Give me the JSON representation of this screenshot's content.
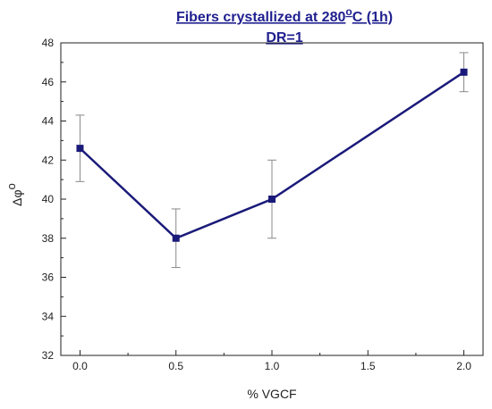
{
  "chart_data": {
    "type": "line",
    "title": {
      "line1_prefix": "Fibers crystallized at 280",
      "line1_superscript": "o",
      "line1_suffix": "C (1h)",
      "line2": "DR=1"
    },
    "xlabel": "% VGCF",
    "ylabel": {
      "base": "Δφ",
      "superscript": "o"
    },
    "xlim": [
      -0.1,
      2.1
    ],
    "ylim": [
      32,
      48
    ],
    "xticks": [
      0.0,
      0.5,
      1.0,
      1.5,
      2.0
    ],
    "xtick_labels": [
      "0.0",
      "0.5",
      "1.0",
      "1.5",
      "2.0"
    ],
    "yticks": [
      32,
      34,
      36,
      38,
      40,
      42,
      44,
      46,
      48
    ],
    "ytick_labels": [
      "32",
      "34",
      "36",
      "38",
      "40",
      "42",
      "44",
      "46",
      "48"
    ],
    "grid": false,
    "series": [
      {
        "x": [
          0.0,
          0.5,
          1.0,
          2.0
        ],
        "y": [
          42.6,
          38.0,
          40.0,
          46.5
        ],
        "error_low": [
          40.9,
          36.5,
          38.0,
          45.5
        ],
        "error_high": [
          44.3,
          39.5,
          42.0,
          47.5
        ],
        "color": "#1a1a7a",
        "marker": "square"
      }
    ],
    "title_color": "#1f1f8f"
  }
}
